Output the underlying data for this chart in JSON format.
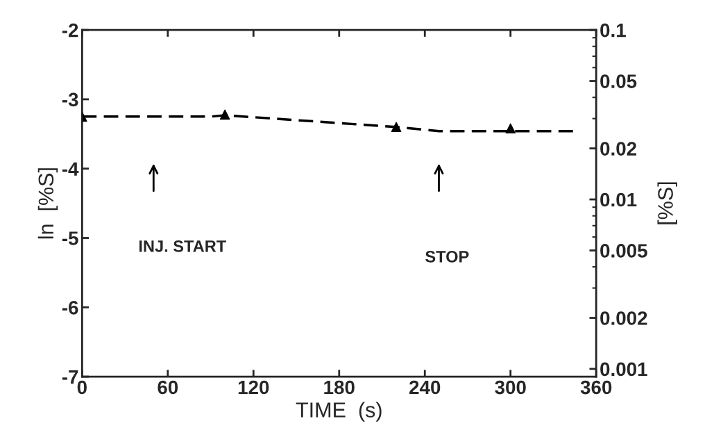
{
  "chart_data": {
    "type": "scatter",
    "xlabel": "TIME  (s)",
    "ylabel": "ln  [%S]",
    "y2label": "[%S]",
    "xlim": [
      0,
      360
    ],
    "xticks": [
      0,
      60,
      120,
      180,
      240,
      300,
      360
    ],
    "ylim": [
      -7,
      -2
    ],
    "yticks": [
      -7,
      -6,
      -5,
      -4,
      -3,
      -2
    ],
    "y2lim": [
      0.0009,
      0.1
    ],
    "y2ticks": [
      0.1,
      0.05,
      0.02,
      0.01,
      0.005,
      0.002,
      0.001
    ],
    "log": "y2",
    "marker": "triangle",
    "grid": false,
    "legend": false,
    "series": [
      {
        "color": "#000000",
        "x": [
          0,
          100,
          220,
          300
        ],
        "values": [
          -3.25,
          -3.22,
          -3.4,
          -3.42
        ]
      },
      {
        "type": "line",
        "color": "#000000",
        "line_style": "dashed",
        "marker": "none",
        "x": [
          0,
          90,
          100,
          220,
          250,
          345
        ],
        "values": [
          -3.25,
          -3.25,
          -3.23,
          -3.4,
          -3.46,
          -3.46
        ]
      }
    ],
    "annotations": [
      "INJ. START",
      "STOP"
    ]
  }
}
